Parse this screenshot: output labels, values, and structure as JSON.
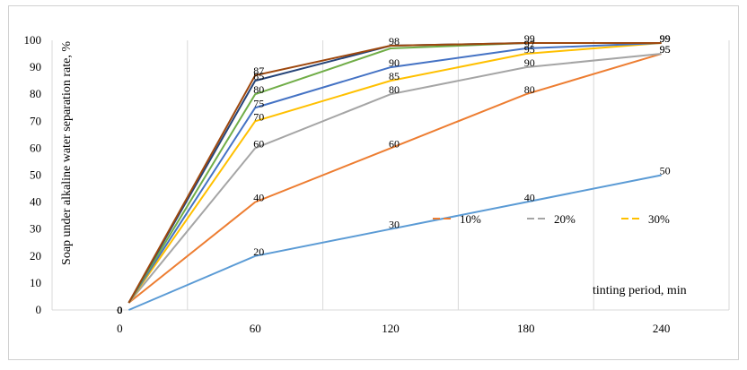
{
  "chart_data": {
    "type": "line",
    "title": "",
    "ylabel": "Soap under alkaline water separation rate, %",
    "xlabel": "tinting period, min",
    "x": [
      0,
      60,
      120,
      180,
      240
    ],
    "xticks": [
      "0",
      "60",
      "120",
      "180",
      "240"
    ],
    "yticks": [
      "0",
      "10",
      "20",
      "30",
      "40",
      "50",
      "60",
      "70",
      "80",
      "90",
      "100"
    ],
    "ylim": [
      0,
      100
    ],
    "grid": "vertical",
    "legend_position": "right-middle",
    "series": [
      {
        "name": "",
        "color": "#5B9BD5",
        "values": [
          0,
          20,
          30,
          40,
          50
        ],
        "labels": [
          "0",
          "20",
          "30",
          "40",
          "50"
        ]
      },
      {
        "name": "10%",
        "color": "#ED7D31",
        "values": [
          0,
          40,
          60,
          80,
          95
        ],
        "labels": [
          "0",
          "40",
          "60",
          "80",
          "95"
        ]
      },
      {
        "name": "20%",
        "color": "#A5A5A5",
        "values": [
          0,
          60,
          80,
          90,
          95
        ],
        "labels": [
          "0",
          "60",
          "80",
          "90",
          "95"
        ]
      },
      {
        "name": "30%",
        "color": "#FFC000",
        "values": [
          0,
          70,
          85,
          95,
          99
        ],
        "labels": [
          "0",
          "70",
          "85",
          "95",
          "99"
        ]
      },
      {
        "name": "",
        "color": "#4472C4",
        "values": [
          0,
          75,
          90,
          97,
          99
        ],
        "labels": [
          "0",
          "75",
          "90",
          "97",
          "99"
        ]
      },
      {
        "name": "",
        "color": "#70AD47",
        "values": [
          0,
          80,
          97,
          99,
          99
        ],
        "labels": [
          "0",
          "80",
          "",
          "",
          ""
        ]
      },
      {
        "name": "",
        "color": "#264478",
        "values": [
          0,
          85,
          98,
          99,
          99
        ],
        "labels": [
          "0",
          "85",
          "",
          "",
          ""
        ]
      },
      {
        "name": "",
        "color": "#9E480E",
        "values": [
          0,
          87,
          98,
          99,
          99
        ],
        "labels": [
          "0",
          "87",
          "98",
          "99",
          "99"
        ]
      }
    ]
  }
}
